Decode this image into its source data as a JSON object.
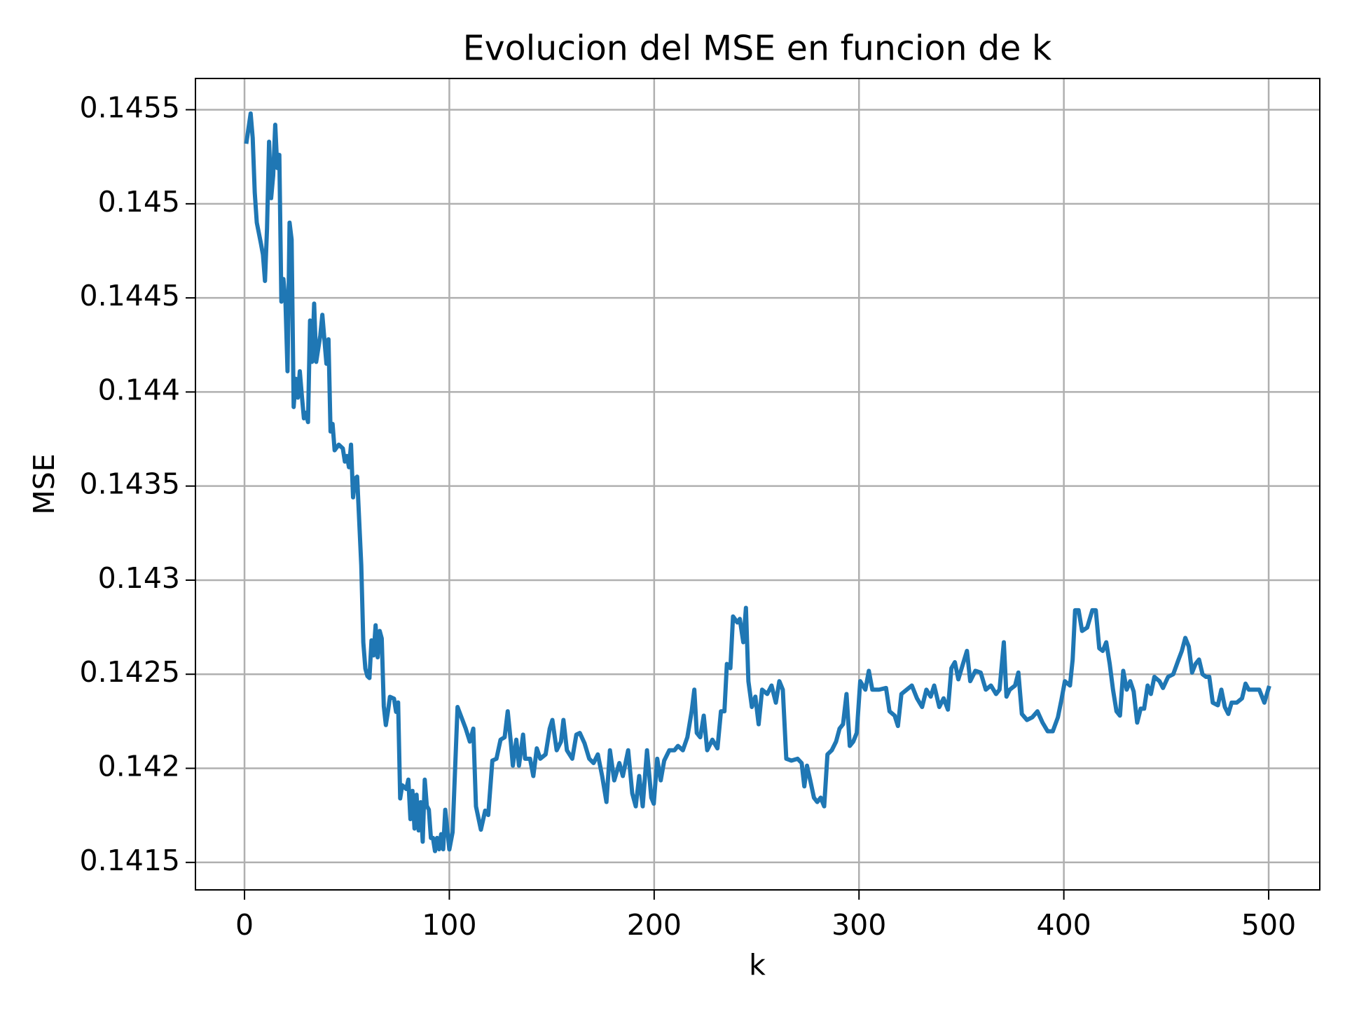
{
  "chart_data": {
    "type": "line",
    "title": "Evolucion del MSE en funcion de k",
    "xlabel": "k",
    "ylabel": "MSE",
    "grid": true,
    "xlim": [
      -23.95,
      524.95
    ],
    "ylim": [
      0.141354,
      0.145666
    ],
    "xticks": [
      0,
      100,
      200,
      300,
      400,
      500
    ],
    "yticks": [
      0.1415,
      0.142,
      0.1425,
      0.143,
      0.1435,
      0.144,
      0.1445,
      0.145,
      0.1455
    ],
    "x": [
      1,
      3,
      4,
      5,
      6,
      8,
      9,
      10,
      11,
      12,
      13,
      14,
      15,
      16,
      17,
      18,
      19,
      20,
      21,
      22,
      23,
      24,
      25,
      26,
      27,
      28,
      29,
      30,
      31,
      32,
      33,
      34,
      35,
      37,
      38,
      40,
      41,
      42,
      43,
      44,
      46,
      48,
      49,
      50,
      51,
      52,
      53,
      54,
      55,
      57,
      58,
      59,
      60,
      61,
      62,
      63,
      64,
      65,
      66,
      67,
      68,
      69,
      70,
      71,
      73,
      74,
      75,
      76,
      77,
      79,
      80,
      81,
      82,
      83,
      84,
      85,
      86,
      87,
      88,
      89,
      90,
      91,
      92,
      93,
      94,
      95,
      96,
      97,
      98,
      100,
      101.6,
      104,
      108,
      110,
      111.7,
      113,
      115.4,
      117.5,
      119,
      121,
      123,
      125,
      127,
      128.5,
      130,
      131,
      132.7,
      134,
      136,
      137,
      139.4,
      141,
      142.7,
      144.4,
      147,
      149,
      150.3,
      152.4,
      154.5,
      155.7,
      157.4,
      160,
      162,
      163.7,
      166,
      168.3,
      170.4,
      172.5,
      174.6,
      176.7,
      178.4,
      180.5,
      183,
      184.7,
      187.3,
      189.3,
      191,
      192.7,
      194.4,
      196.5,
      198.6,
      199.8,
      201.5,
      203.2,
      204.9,
      207.4,
      209.9,
      211.6,
      214,
      216.2,
      218.3,
      219.6,
      220.8,
      222.5,
      224.2,
      225.9,
      228.4,
      230.9,
      232.6,
      234.3,
      235.5,
      237.2,
      238.5,
      240.6,
      241.8,
      243.5,
      244.8,
      246,
      247.7,
      249.4,
      251,
      252.7,
      255.2,
      257.3,
      259.4,
      261.1,
      262.8,
      264.5,
      267,
      270,
      272,
      273.3,
      274.6,
      276.2,
      278,
      279.6,
      281.3,
      283,
      284.6,
      286.7,
      288.8,
      290.5,
      292.2,
      293.9,
      295.5,
      297.2,
      298.9,
      300.6,
      303.1,
      304.8,
      306.5,
      309.8,
      313.2,
      314.9,
      317.4,
      319,
      320.7,
      323.3,
      325.8,
      328.3,
      330.8,
      332.9,
      335,
      336.7,
      339.2,
      341.3,
      343.4,
      345.1,
      346.8,
      348.5,
      351,
      352.7,
      354.3,
      356.8,
      359.4,
      361.9,
      364.4,
      366.9,
      368.6,
      370.7,
      372,
      373.6,
      376.2,
      377.8,
      379.5,
      382,
      384.6,
      387.1,
      389.6,
      392.1,
      394.6,
      397.1,
      398.8,
      400.5,
      403,
      404.3,
      405.5,
      407.2,
      408.9,
      411.4,
      413.9,
      415.6,
      417.3,
      419,
      420.7,
      422.4,
      424,
      425.7,
      427.4,
      429,
      430.7,
      432.4,
      434.1,
      435.8,
      437.5,
      439.2,
      440.9,
      442.5,
      444.2,
      446.7,
      448.4,
      450.9,
      453.4,
      456,
      457.6,
      459.3,
      461,
      462.6,
      464.3,
      466,
      467.7,
      469.4,
      471,
      472.7,
      475.2,
      476.9,
      478.6,
      480.3,
      481.9,
      484.4,
      487,
      488.7,
      490.3,
      492.9,
      495.4,
      497.9,
      500
    ],
    "series": [
      {
        "color": "#1f77b4",
        "values": [
          0.14533,
          0.14548,
          0.14535,
          0.14506,
          0.1449,
          0.14479,
          0.14473,
          0.14459,
          0.14487,
          0.14533,
          0.14503,
          0.14515,
          0.14542,
          0.14519,
          0.14526,
          0.14448,
          0.1446,
          0.14448,
          0.14411,
          0.1449,
          0.14481,
          0.14392,
          0.14407,
          0.14397,
          0.14411,
          0.14398,
          0.14386,
          0.14389,
          0.14384,
          0.14438,
          0.14416,
          0.14447,
          0.14416,
          0.1443,
          0.14441,
          0.14415,
          0.14428,
          0.14379,
          0.14383,
          0.14369,
          0.14372,
          0.1437,
          0.14363,
          0.14366,
          0.1436,
          0.14372,
          0.14344,
          0.14354,
          0.14355,
          0.14308,
          0.14267,
          0.14253,
          0.14249,
          0.14248,
          0.14268,
          0.1426,
          0.14276,
          0.14259,
          0.14273,
          0.14269,
          0.14233,
          0.14223,
          0.1423,
          0.14238,
          0.14237,
          0.1423,
          0.14235,
          0.14184,
          0.14191,
          0.14189,
          0.14194,
          0.14173,
          0.14188,
          0.14168,
          0.14186,
          0.14167,
          0.14182,
          0.14161,
          0.14194,
          0.1418,
          0.14178,
          0.14163,
          0.14163,
          0.14156,
          0.14163,
          0.14157,
          0.14165,
          0.14157,
          0.14178,
          0.141569,
          0.141661,
          0.142326,
          0.142211,
          0.142142,
          0.142211,
          0.141798,
          0.141674,
          0.141775,
          0.141752,
          0.142041,
          0.142051,
          0.142152,
          0.142165,
          0.142303,
          0.142142,
          0.142014,
          0.142152,
          0.142014,
          0.142179,
          0.142051,
          0.142051,
          0.141959,
          0.142106,
          0.142051,
          0.142074,
          0.142211,
          0.142257,
          0.142096,
          0.142142,
          0.142257,
          0.142096,
          0.142051,
          0.142179,
          0.142188,
          0.142133,
          0.142051,
          0.142028,
          0.142074,
          0.141959,
          0.141821,
          0.142096,
          0.141936,
          0.142028,
          0.141959,
          0.142096,
          0.141867,
          0.141798,
          0.141959,
          0.141798,
          0.142096,
          0.141844,
          0.141812,
          0.142051,
          0.141936,
          0.142041,
          0.142096,
          0.142096,
          0.142119,
          0.142096,
          0.142165,
          0.142303,
          0.142418,
          0.142188,
          0.142165,
          0.14228,
          0.142096,
          0.142152,
          0.142106,
          0.142303,
          0.142303,
          0.142555,
          0.142532,
          0.142807,
          0.142775,
          0.142794,
          0.14267,
          0.142853,
          0.142463,
          0.142326,
          0.142381,
          0.142234,
          0.142418,
          0.142395,
          0.14244,
          0.142349,
          0.142463,
          0.142418,
          0.142051,
          0.142041,
          0.142051,
          0.142028,
          0.141904,
          0.142014,
          0.141936,
          0.141844,
          0.141821,
          0.141844,
          0.141798,
          0.142074,
          0.142096,
          0.142142,
          0.142211,
          0.142234,
          0.142395,
          0.142119,
          0.142142,
          0.142188,
          0.142463,
          0.142418,
          0.142518,
          0.142418,
          0.142418,
          0.142427,
          0.142303,
          0.14228,
          0.142225,
          0.142395,
          0.142418,
          0.14244,
          0.142372,
          0.142326,
          0.142418,
          0.142381,
          0.14244,
          0.142326,
          0.142372,
          0.142312,
          0.142532,
          0.142564,
          0.142473,
          0.142564,
          0.142624,
          0.142463,
          0.142518,
          0.142509,
          0.142418,
          0.14244,
          0.142395,
          0.142418,
          0.14267,
          0.142381,
          0.142418,
          0.14244,
          0.142509,
          0.142289,
          0.142257,
          0.142271,
          0.142303,
          0.142243,
          0.142197,
          0.142197,
          0.142271,
          0.142363,
          0.142463,
          0.14244,
          0.142578,
          0.14284,
          0.14284,
          0.14273,
          0.142748,
          0.14284,
          0.14284,
          0.142638,
          0.142624,
          0.14267,
          0.142555,
          0.142418,
          0.142303,
          0.14228,
          0.142518,
          0.142418,
          0.142463,
          0.142408,
          0.142243,
          0.142317,
          0.142317,
          0.14244,
          0.142395,
          0.142486,
          0.142463,
          0.142427,
          0.142486,
          0.1425,
          0.142578,
          0.142624,
          0.142693,
          0.142647,
          0.142509,
          0.142555,
          0.142578,
          0.1425,
          0.142486,
          0.142486,
          0.142349,
          0.142335,
          0.142418,
          0.142326,
          0.142289,
          0.142349,
          0.142349,
          0.142372,
          0.14245,
          0.142418,
          0.142418,
          0.142418,
          0.142349,
          0.142427
        ]
      }
    ]
  }
}
